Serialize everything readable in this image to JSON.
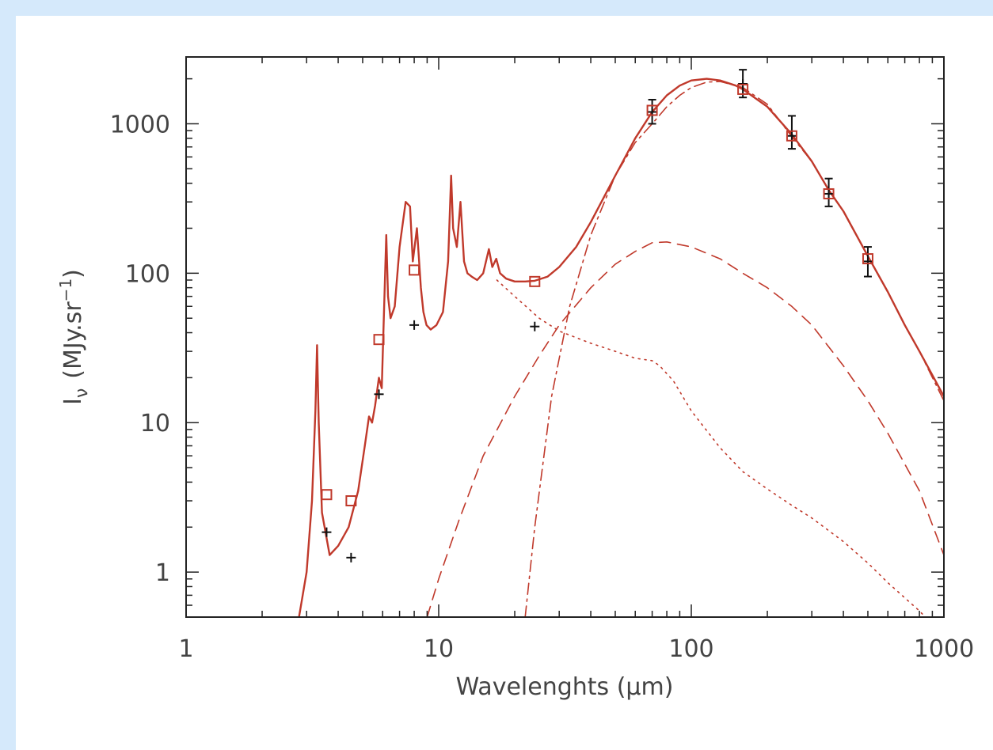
{
  "chart_data": {
    "type": "line",
    "xlabel": "Wavelenghts (μm)",
    "ylabel": "Iν (MJy.sr⁻¹)",
    "ylabel_parts": {
      "symbol": "I",
      "subscript": "ν",
      "unit": "(MJy.sr",
      "exponent": "−1",
      "close": ")"
    },
    "x_scale": "log",
    "y_scale": "log",
    "xlim": [
      1,
      1000
    ],
    "ylim": [
      0.5,
      2800
    ],
    "x_ticks": [
      1,
      10,
      100,
      1000
    ],
    "x_tick_labels": [
      "1",
      "10",
      "100",
      "1000"
    ],
    "y_ticks": [
      1,
      10,
      100,
      1000
    ],
    "y_tick_labels": [
      "1",
      "10",
      "100",
      "1000"
    ],
    "grid": false,
    "colors": {
      "model": "#c0392b",
      "observed": "#111111",
      "axes": "#222222",
      "text": "#444444"
    },
    "series": [
      {
        "style": "solid",
        "x": [
          2.8,
          3.0,
          3.15,
          3.25,
          3.3,
          3.35,
          3.45,
          3.7,
          4.0,
          4.4,
          4.8,
          5.1,
          5.3,
          5.45,
          5.6,
          5.8,
          5.95,
          6.1,
          6.2,
          6.3,
          6.45,
          6.7,
          7.0,
          7.4,
          7.7,
          7.9,
          8.2,
          8.5,
          8.7,
          8.95,
          9.3,
          9.8,
          10.4,
          10.9,
          11.2,
          11.4,
          11.8,
          12.2,
          12.6,
          13.0,
          13.5,
          14.2,
          15.0,
          15.8,
          16.3,
          16.9,
          17.5,
          18.5,
          20,
          22,
          24,
          27,
          30,
          35,
          40,
          50,
          60,
          70,
          80,
          90,
          100,
          115,
          130,
          150,
          160,
          200,
          250,
          300,
          350,
          400,
          500,
          600,
          700,
          800,
          1000
        ],
        "y": [
          0.5,
          1.0,
          3.0,
          12,
          33,
          10,
          2.5,
          1.3,
          1.5,
          2.0,
          3.5,
          7,
          11,
          10,
          13,
          20,
          17,
          70,
          180,
          70,
          50,
          60,
          150,
          300,
          280,
          120,
          200,
          80,
          55,
          45,
          42,
          45,
          55,
          120,
          450,
          200,
          150,
          300,
          120,
          100,
          95,
          90,
          100,
          145,
          110,
          125,
          100,
          92,
          88,
          88,
          89,
          95,
          110,
          150,
          220,
          450,
          800,
          1200,
          1550,
          1800,
          1950,
          2000,
          1950,
          1800,
          1700,
          1300,
          850,
          560,
          360,
          260,
          130,
          75,
          45,
          30,
          15
        ]
      },
      {
        "style": "dash-dot",
        "x": [
          22,
          24,
          28,
          33,
          40,
          50,
          60,
          70,
          80,
          90,
          100,
          115,
          130,
          160,
          200,
          250,
          300,
          350,
          400,
          500,
          600,
          700,
          800,
          1000
        ],
        "y": [
          0.5,
          2,
          15,
          60,
          180,
          450,
          750,
          1000,
          1300,
          1550,
          1750,
          1900,
          1920,
          1750,
          1350,
          820,
          560,
          360,
          260,
          130,
          75,
          45,
          30,
          14
        ]
      },
      {
        "style": "dashed",
        "x": [
          9,
          10,
          12,
          15,
          20,
          25,
          30,
          40,
          50,
          60,
          70,
          80,
          100,
          130,
          160,
          200,
          250,
          300,
          400,
          500,
          600,
          800,
          1000
        ],
        "y": [
          0.5,
          0.9,
          2.2,
          6,
          15,
          28,
          45,
          80,
          115,
          140,
          160,
          162,
          150,
          125,
          100,
          80,
          60,
          45,
          24,
          14,
          8.5,
          3.5,
          1.3
        ]
      },
      {
        "style": "dotted",
        "x": [
          17,
          20,
          25,
          30,
          40,
          50,
          60,
          70,
          75,
          85,
          100,
          130,
          160,
          200,
          250,
          300,
          400,
          500,
          600,
          800,
          1000
        ],
        "y": [
          90,
          70,
          50,
          41,
          34,
          30,
          27,
          26,
          24,
          19,
          12,
          6.8,
          4.7,
          3.6,
          2.8,
          2.3,
          1.6,
          1.15,
          0.85,
          0.55,
          0.37
        ]
      }
    ],
    "model_points": {
      "marker": "open-square",
      "x": [
        3.6,
        4.5,
        5.8,
        8.0,
        24,
        70,
        160,
        250,
        350,
        500
      ],
      "y": [
        3.3,
        3.0,
        36,
        105,
        88,
        1230,
        1700,
        830,
        340,
        125
      ]
    },
    "observed_points": {
      "marker": "plus",
      "x": [
        3.6,
        4.5,
        5.8,
        8.0,
        24,
        70,
        160,
        250,
        350,
        500
      ],
      "y": [
        1.85,
        1.25,
        15.5,
        45,
        44,
        1200,
        1850,
        830,
        340,
        120
      ],
      "y_err_low": [
        0,
        0,
        0,
        0,
        0,
        200,
        350,
        150,
        60,
        25
      ],
      "y_err_high": [
        0,
        0,
        0,
        0,
        0,
        250,
        450,
        300,
        90,
        30
      ]
    }
  }
}
